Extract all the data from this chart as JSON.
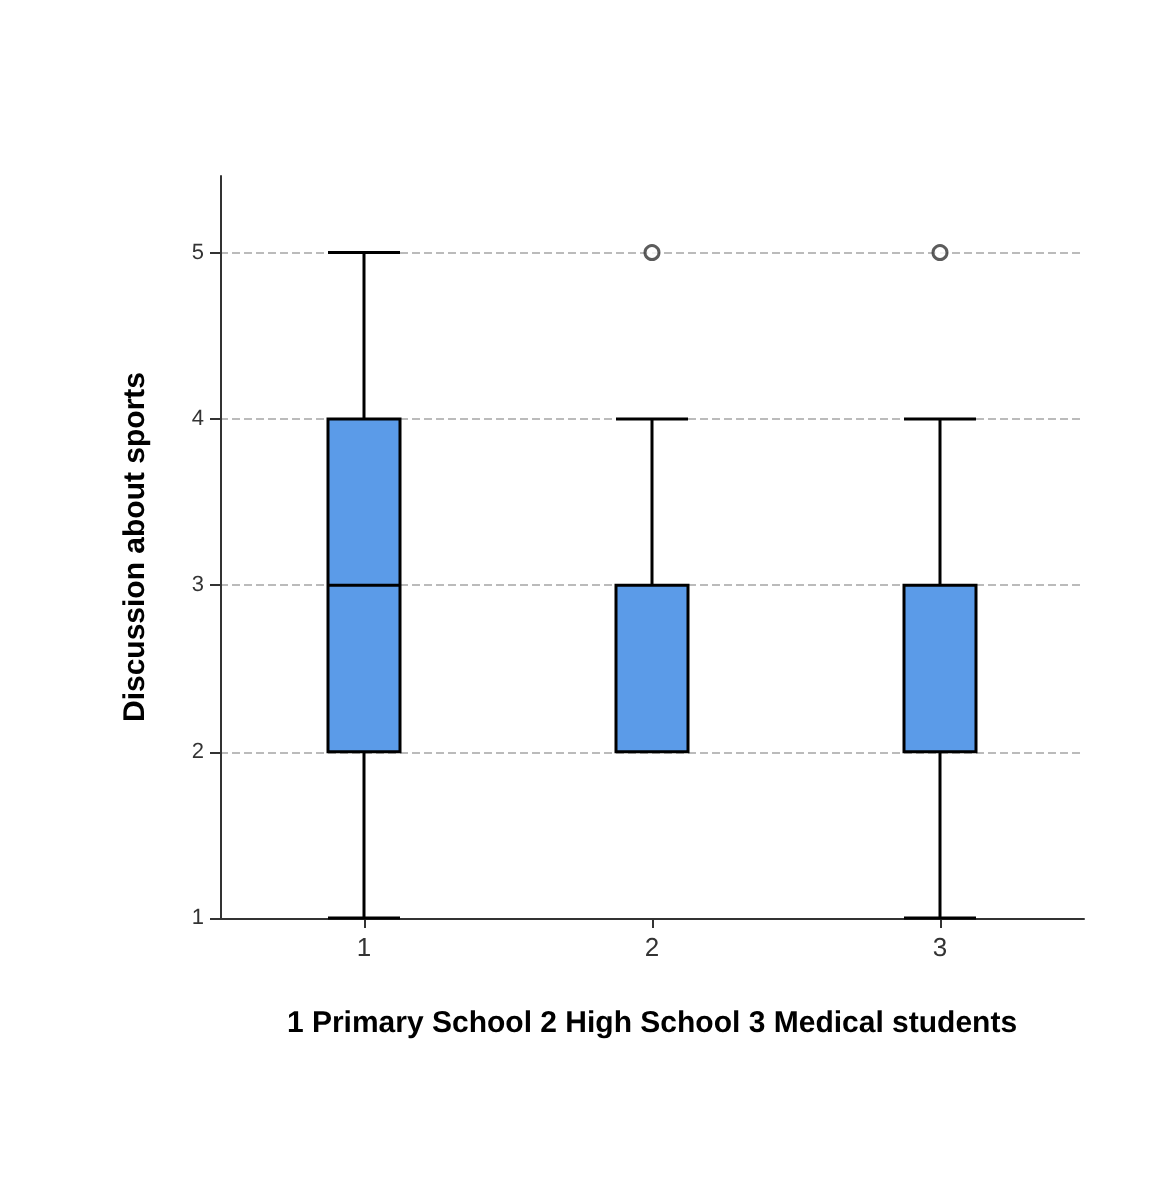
{
  "chart_data": {
    "type": "box",
    "ylabel": "Discussion about sports",
    "xlabel": "1 Primary School 2 High School 3 Medical students",
    "categories": [
      "1",
      "2",
      "3"
    ],
    "color": "#5b9be8",
    "boxes": [
      {
        "low": 1,
        "q1": 2,
        "median": 3,
        "q3": 4,
        "high": 5
      },
      {
        "low": 2,
        "q1": 2,
        "median": 2,
        "q3": 3,
        "high": 4,
        "outliers": [
          5
        ]
      },
      {
        "low": 1,
        "q1": 2,
        "median": 2,
        "q3": 3,
        "high": 4,
        "outliers": [
          5
        ]
      }
    ],
    "ylim": [
      1,
      5.46
    ],
    "yticks": [
      1,
      2,
      3,
      4,
      5
    ],
    "grid": "y"
  }
}
